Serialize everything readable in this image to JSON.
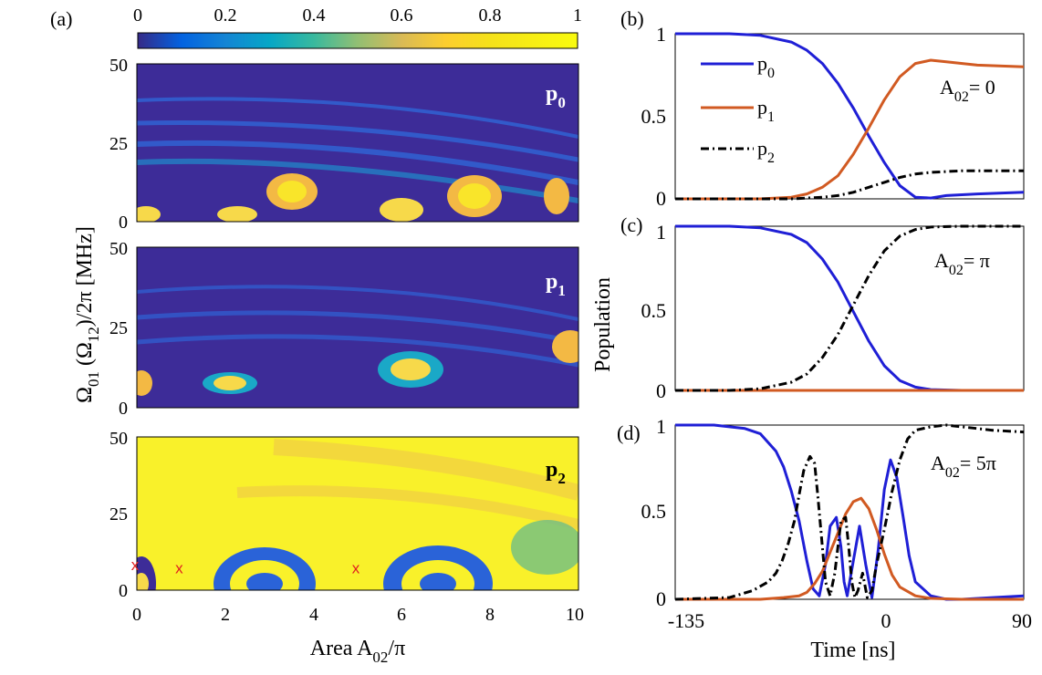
{
  "colors": {
    "p0": "#1f1fd6",
    "p1": "#d15a22",
    "p2": "#000000",
    "marker": "#e02020"
  },
  "chart_data": [
    {
      "type": "heatmap",
      "panel_label": "(a)",
      "colorbar": {
        "min": 0,
        "max": 1,
        "ticks": [
          "0",
          "0.2",
          "0.4",
          "0.6",
          "0.8",
          "1"
        ]
      },
      "x": {
        "label": "Area A",
        "label_sub": "02",
        "label_suffix": "/π",
        "range": [
          0,
          10
        ],
        "ticks": [
          "0",
          "2",
          "4",
          "6",
          "8",
          "10"
        ]
      },
      "y": {
        "label_parts": [
          "Ω",
          "01",
          " (Ω",
          "12",
          ")/2π [MHz]"
        ],
        "range": [
          0,
          50
        ],
        "ticks": [
          "0",
          "25",
          "50"
        ]
      },
      "maps": [
        {
          "name": "p0",
          "label": "p",
          "label_sub": "0"
        },
        {
          "name": "p1",
          "label": "p",
          "label_sub": "1"
        },
        {
          "name": "p2",
          "label": "p",
          "label_sub": "2",
          "markers": {
            "symbol": "x",
            "points": [
              [
                0,
                8
              ],
              [
                1,
                7
              ],
              [
                5,
                7
              ]
            ]
          }
        }
      ]
    },
    {
      "type": "line",
      "panel_label": "(b)",
      "annotation": {
        "main": "A",
        "sub": "02",
        "tail": "= 0"
      },
      "x": {
        "range": [
          -135,
          90
        ]
      },
      "y": {
        "range": [
          0,
          1
        ],
        "ticks": [
          "0",
          "0.5",
          "1"
        ]
      },
      "legend": [
        {
          "label": "p",
          "sub": "0",
          "color": "#1f1fd6",
          "dash": ""
        },
        {
          "label": "p",
          "sub": "1",
          "color": "#d15a22",
          "dash": ""
        },
        {
          "label": "p",
          "sub": "2",
          "color": "#000000",
          "dash": "9 4 2 4"
        }
      ],
      "series": [
        {
          "name": "p0",
          "x": [
            -135,
            -100,
            -80,
            -60,
            -50,
            -40,
            -30,
            -20,
            -10,
            0,
            10,
            20,
            30,
            40,
            60,
            90
          ],
          "y": [
            1,
            1,
            0.99,
            0.95,
            0.9,
            0.82,
            0.7,
            0.55,
            0.38,
            0.22,
            0.08,
            0.01,
            0.005,
            0.02,
            0.03,
            0.04
          ]
        },
        {
          "name": "p1",
          "x": [
            -135,
            -80,
            -60,
            -50,
            -40,
            -30,
            -20,
            -10,
            0,
            10,
            20,
            30,
            40,
            60,
            90
          ],
          "y": [
            0,
            0,
            0.01,
            0.03,
            0.07,
            0.14,
            0.27,
            0.43,
            0.6,
            0.74,
            0.82,
            0.84,
            0.83,
            0.81,
            0.8
          ]
        },
        {
          "name": "p2",
          "x": [
            -135,
            -60,
            -40,
            -30,
            -20,
            -10,
            0,
            10,
            20,
            30,
            50,
            70,
            90
          ],
          "y": [
            0,
            0,
            0.01,
            0.02,
            0.04,
            0.07,
            0.1,
            0.13,
            0.15,
            0.16,
            0.17,
            0.17,
            0.17
          ]
        }
      ]
    },
    {
      "type": "line",
      "panel_label": "(c)",
      "annotation": {
        "main": "A",
        "sub": "02",
        "tail": "= π"
      },
      "ylabel": "Population",
      "x": {
        "range": [
          -135,
          90
        ]
      },
      "y": {
        "range": [
          0,
          1
        ],
        "ticks": [
          "0",
          "0.5",
          "1"
        ]
      },
      "series": [
        {
          "name": "p0",
          "x": [
            -135,
            -100,
            -80,
            -60,
            -50,
            -40,
            -30,
            -20,
            -10,
            0,
            10,
            20,
            30,
            50,
            90
          ],
          "y": [
            1,
            1,
            0.99,
            0.95,
            0.9,
            0.8,
            0.66,
            0.48,
            0.3,
            0.15,
            0.06,
            0.02,
            0.005,
            0,
            0
          ]
        },
        {
          "name": "p1",
          "x": [
            -135,
            90
          ],
          "y": [
            0,
            0
          ]
        },
        {
          "name": "p2",
          "x": [
            -135,
            -100,
            -80,
            -60,
            -50,
            -40,
            -30,
            -20,
            -10,
            0,
            10,
            20,
            30,
            50,
            90
          ],
          "y": [
            0,
            0,
            0.01,
            0.05,
            0.1,
            0.2,
            0.34,
            0.52,
            0.7,
            0.85,
            0.94,
            0.98,
            0.995,
            1,
            1
          ]
        }
      ]
    },
    {
      "type": "line",
      "panel_label": "(d)",
      "annotation": {
        "main": "A",
        "sub": "02",
        "tail": "= 5π"
      },
      "x": {
        "label": "Time [ns]",
        "range": [
          -135,
          90
        ],
        "ticks": [
          "-135",
          "0",
          "90"
        ]
      },
      "y": {
        "range": [
          0,
          1
        ],
        "ticks": [
          "0",
          "0.5",
          "1"
        ]
      },
      "series": [
        {
          "name": "p0",
          "x": [
            -135,
            -110,
            -90,
            -80,
            -70,
            -65,
            -60,
            -55,
            -50,
            -46,
            -42,
            -38,
            -35,
            -31,
            -28,
            -26,
            -24,
            -20,
            -16,
            -12,
            -8,
            -4,
            0,
            4,
            8,
            12,
            16,
            20,
            30,
            40,
            50,
            70,
            90
          ],
          "y": [
            1,
            1,
            0.98,
            0.95,
            0.85,
            0.76,
            0.62,
            0.45,
            0.22,
            0.06,
            0.02,
            0.2,
            0.42,
            0.47,
            0.3,
            0.1,
            0.02,
            0.22,
            0.42,
            0.2,
            0.01,
            0.28,
            0.63,
            0.8,
            0.7,
            0.48,
            0.25,
            0.1,
            0.02,
            0,
            0,
            0.01,
            0.02
          ]
        },
        {
          "name": "p1",
          "x": [
            -135,
            -80,
            -65,
            -55,
            -50,
            -45,
            -40,
            -35,
            -30,
            -25,
            -20,
            -15,
            -10,
            -5,
            0,
            5,
            10,
            20,
            30,
            50,
            90
          ],
          "y": [
            0,
            0,
            0.01,
            0.02,
            0.04,
            0.09,
            0.16,
            0.27,
            0.38,
            0.49,
            0.56,
            0.58,
            0.52,
            0.4,
            0.26,
            0.14,
            0.07,
            0.02,
            0.005,
            0,
            0
          ]
        },
        {
          "name": "p2",
          "x": [
            -135,
            -100,
            -85,
            -75,
            -70,
            -66,
            -62,
            -58,
            -55,
            -52,
            -48,
            -45,
            -43,
            -40,
            -38,
            -35,
            -32,
            -28,
            -25,
            -23,
            -21,
            -19,
            -17,
            -14,
            -11,
            -8,
            -5,
            0,
            5,
            10,
            15,
            20,
            30,
            40,
            50,
            70,
            90
          ],
          "y": [
            0,
            0.01,
            0.05,
            0.1,
            0.15,
            0.22,
            0.32,
            0.45,
            0.6,
            0.74,
            0.82,
            0.78,
            0.6,
            0.3,
            0.1,
            0.02,
            0.15,
            0.45,
            0.47,
            0.3,
            0.1,
            0.01,
            0.05,
            0.15,
            0.01,
            0.05,
            0.2,
            0.4,
            0.62,
            0.8,
            0.92,
            0.97,
            0.99,
            1,
            0.99,
            0.97,
            0.96
          ]
        }
      ]
    }
  ]
}
